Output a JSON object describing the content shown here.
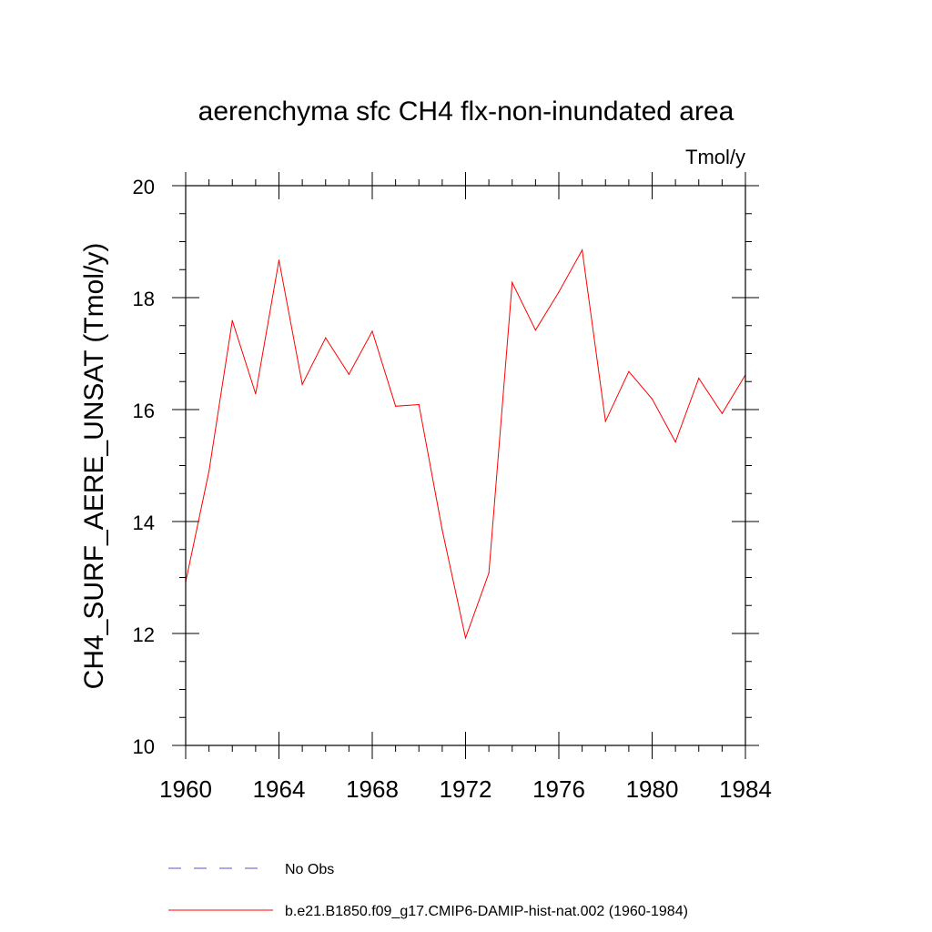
{
  "chart_data": {
    "type": "line",
    "title": "aerenchyma sfc CH4 flx-non-inundated area",
    "units": "Tmol/y",
    "ylabel": "CH4_SURF_AERE_UNSAT  (Tmol/y)",
    "xlabel": "",
    "xlim": [
      1960,
      1984
    ],
    "ylim": [
      10,
      20
    ],
    "x_ticks": [
      "1960",
      "1964",
      "1968",
      "1972",
      "1976",
      "1980",
      "1984"
    ],
    "y_ticks": [
      "10",
      "12",
      "14",
      "16",
      "18",
      "20"
    ],
    "x": [
      1960,
      1961,
      1962,
      1963,
      1964,
      1965,
      1966,
      1967,
      1968,
      1969,
      1970,
      1971,
      1972,
      1973,
      1974,
      1975,
      1976,
      1977,
      1978,
      1979,
      1980,
      1981,
      1982,
      1983,
      1984
    ],
    "series": [
      {
        "name": "b.e21.B1850.f09_g17.CMIP6-DAMIP-hist-nat.002 (1960-1984)",
        "color": "#ff0000",
        "style": "solid",
        "values": [
          12.92,
          14.9,
          17.59,
          16.28,
          18.67,
          16.45,
          17.28,
          16.63,
          17.4,
          16.06,
          16.09,
          13.85,
          11.92,
          13.08,
          18.27,
          17.42,
          18.1,
          18.85,
          15.79,
          16.68,
          16.19,
          15.42,
          16.56,
          15.93,
          16.62
        ]
      }
    ],
    "legend": {
      "placement": "bottom",
      "entries": [
        {
          "label": "No Obs",
          "color": "#5555cc",
          "style": "dashed"
        },
        {
          "label": "b.e21.B1850.f09_g17.CMIP6-DAMIP-hist-nat.002 (1960-1984)",
          "color": "#ff0000",
          "style": "solid"
        }
      ]
    },
    "grid": false
  }
}
